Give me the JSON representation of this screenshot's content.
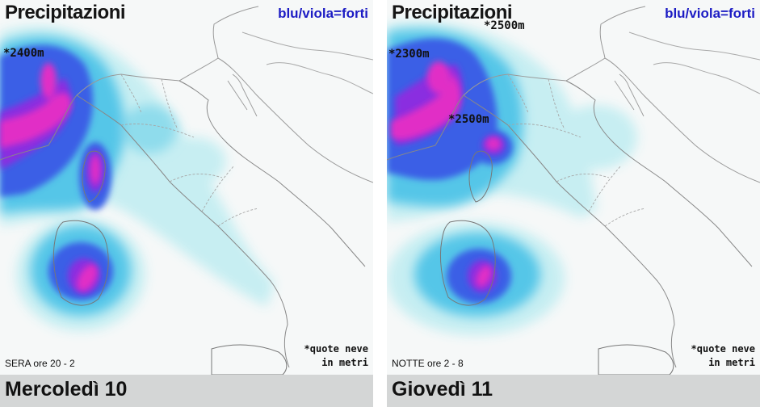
{
  "panels": [
    {
      "title": "Precipitazioni",
      "legend": "blu/viola=forti",
      "time_label": "SERA ore 20 - 2",
      "snow_note_line1": "*quote neve",
      "snow_note_line2": "in metri",
      "day_label": "Mercoledì 10",
      "snow_labels": [
        "*2400m"
      ]
    },
    {
      "title": "Precipitazioni",
      "legend": "blu/viola=forti",
      "time_label": "NOTTE ore 2 - 8",
      "snow_note_line1": "*quote neve",
      "snow_note_line2": "in metri",
      "day_label": "Giovedì 11",
      "snow_labels": [
        "*2500m",
        "*2300m",
        "*2500m"
      ]
    }
  ],
  "colors": {
    "light": "#b7ebf0",
    "cyan": "#44c3e6",
    "blue": "#3355e8",
    "violet": "#7b22d6",
    "magenta": "#e02cc4",
    "pink": "#f06ad6",
    "legend_text": "#1c1cc4",
    "footer": "#d4d6d6"
  }
}
